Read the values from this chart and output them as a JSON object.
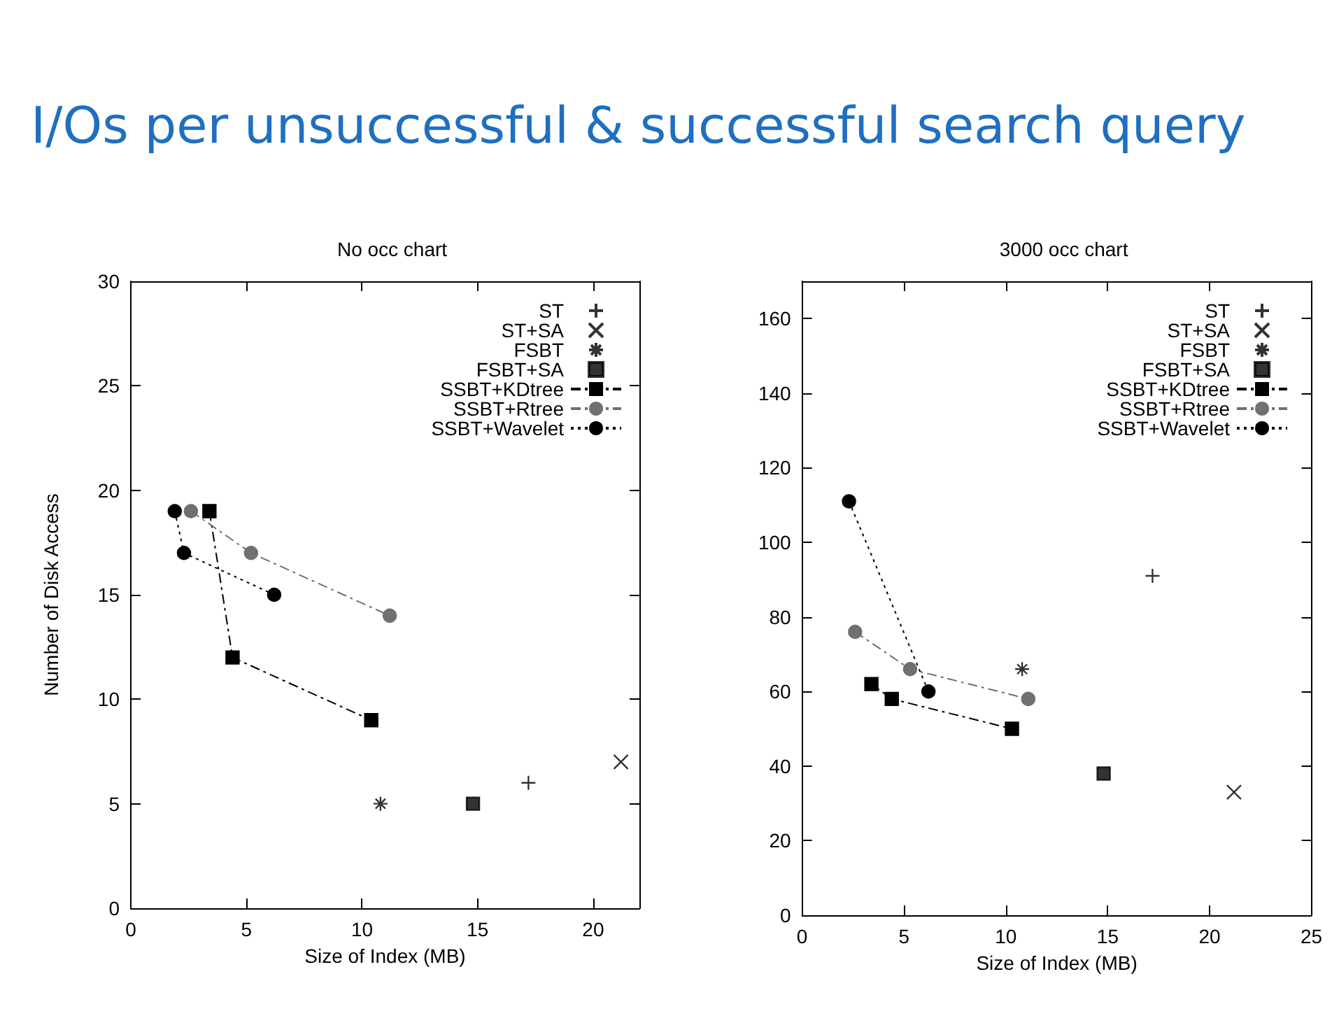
{
  "chart_data": [
    {
      "type": "other",
      "title": "I/Os per unsuccessful & successful search query"
    },
    {
      "type": "scatter",
      "title": "No occ chart",
      "xlabel": "Size of Index (MB)",
      "ylabel": "Number of Disk Access",
      "xlim": [
        0,
        22
      ],
      "xticks": [
        0,
        5,
        10,
        15,
        20
      ],
      "ylim": [
        0,
        30
      ],
      "yticks": [
        0,
        5,
        10,
        15,
        20,
        25,
        30
      ],
      "grid": false,
      "legend": "top right",
      "series": [
        {
          "name": "ST",
          "color": "#000000",
          "marker": "plus",
          "x": [
            17.2
          ],
          "values": [
            6
          ]
        },
        {
          "name": "ST+SA",
          "color": "#000000",
          "marker": "x",
          "x": [
            21.2
          ],
          "values": [
            7
          ]
        },
        {
          "name": "FSBT",
          "color": "#000000",
          "marker": "cross",
          "x": [
            10.8
          ],
          "values": [
            5
          ]
        },
        {
          "name": "FSBT+SA",
          "color": "#000000",
          "marker": "square",
          "x": [
            14.8
          ],
          "values": [
            5
          ]
        },
        {
          "name": "SSBT+KDtree",
          "type": "line",
          "color": "#000000",
          "marker": "square",
          "line_style": "dashed",
          "x": [
            3.4,
            4.4,
            10.4
          ],
          "values": [
            19,
            12,
            9
          ]
        },
        {
          "name": "SSBT+Rtree",
          "type": "line",
          "color": "#707070",
          "marker": "circle",
          "line_style": "dashed",
          "x": [
            2.6,
            5.2,
            11.2
          ],
          "values": [
            19,
            17,
            14
          ]
        },
        {
          "name": "SSBT+Wavelet",
          "type": "line",
          "color": "#000000",
          "marker": "circle",
          "line_style": "dotted",
          "x": [
            1.9,
            2.3,
            6.2
          ],
          "values": [
            19,
            17,
            15
          ]
        }
      ]
    },
    {
      "type": "scatter",
      "title": "3000 occ chart",
      "xlabel": "Size of Index (MB)",
      "xlim": [
        0,
        25
      ],
      "xticks": [
        0,
        5,
        10,
        15,
        20,
        25
      ],
      "ylim": [
        0,
        170
      ],
      "yticks": [
        0,
        20,
        40,
        60,
        80,
        100,
        120,
        140,
        160
      ],
      "grid": false,
      "legend": "top right",
      "series": [
        {
          "name": "ST",
          "color": "#000000",
          "marker": "plus",
          "x": [
            17.2
          ],
          "values": [
            91
          ]
        },
        {
          "name": "ST+SA",
          "color": "#000000",
          "marker": "x",
          "x": [
            21.2
          ],
          "values": [
            33
          ]
        },
        {
          "name": "FSBT",
          "color": "#000000",
          "marker": "cross",
          "x": [
            10.8
          ],
          "values": [
            66
          ]
        },
        {
          "name": "FSBT+SA",
          "color": "#000000",
          "marker": "square",
          "x": [
            14.8
          ],
          "values": [
            38
          ]
        },
        {
          "name": "SSBT+KDtree",
          "type": "line",
          "color": "#000000",
          "marker": "square",
          "line_style": "dashed",
          "x": [
            3.4,
            4.4,
            10.3
          ],
          "values": [
            62,
            58,
            50
          ]
        },
        {
          "name": "SSBT+Rtree",
          "type": "line",
          "color": "#707070",
          "marker": "circle",
          "line_style": "dashed",
          "x": [
            2.6,
            5.3,
            11.1
          ],
          "values": [
            76,
            66,
            58
          ]
        },
        {
          "name": "SSBT+Wavelet",
          "type": "line",
          "color": "#000000",
          "marker": "circle",
          "line_style": "dotted",
          "x": [
            2.3,
            6.2
          ],
          "values": [
            111,
            60
          ]
        }
      ]
    }
  ]
}
